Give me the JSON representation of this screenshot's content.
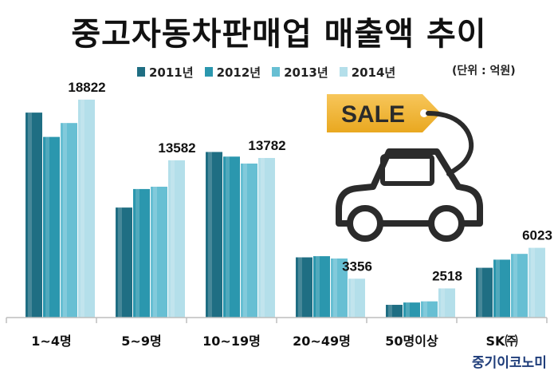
{
  "title": "중고자동차판매업 매출액 추이",
  "unit_label": "(단위 : 억원)",
  "source_label": "중기이코노미",
  "illustration": {
    "icon": "sale-tag-car-icon",
    "tag_text": "SALE",
    "tag_color": "#f2b531",
    "line_color": "#2b2b2b"
  },
  "chart_data": {
    "type": "bar",
    "title": "중고자동차판매업 매출액 추이",
    "xlabel": "",
    "ylabel": "",
    "ylim": [
      0,
      19500
    ],
    "grid": false,
    "legend_position": "top",
    "categories": [
      "1~4명",
      "5~9명",
      "10~19명",
      "20~49명",
      "50명이상",
      "SK㈜"
    ],
    "series": [
      {
        "name": "2011년",
        "color": "#1f6e83",
        "values": [
          17700,
          9500,
          14300,
          5200,
          1100,
          4300
        ]
      },
      {
        "name": "2012년",
        "color": "#2b97ae",
        "values": [
          15600,
          11100,
          13900,
          5300,
          1300,
          5000
        ]
      },
      {
        "name": "2013년",
        "color": "#67bfd3",
        "values": [
          16800,
          11300,
          13300,
          5100,
          1400,
          5500
        ]
      },
      {
        "name": "2014년",
        "color": "#b4dfea",
        "values": [
          18822,
          13582,
          13782,
          3356,
          2518,
          6023
        ]
      }
    ],
    "data_labels": [
      {
        "category": "1~4명",
        "series": "2014년",
        "text": "18822"
      },
      {
        "category": "5~9명",
        "series": "2014년",
        "text": "13582"
      },
      {
        "category": "10~19명",
        "series": "2014년",
        "text": "13782"
      },
      {
        "category": "20~49명",
        "series": "2014년",
        "text": "3356"
      },
      {
        "category": "50명이상",
        "series": "2014년",
        "text": "2518"
      },
      {
        "category": "SK㈜",
        "series": "2014년",
        "text": "6023"
      }
    ]
  }
}
